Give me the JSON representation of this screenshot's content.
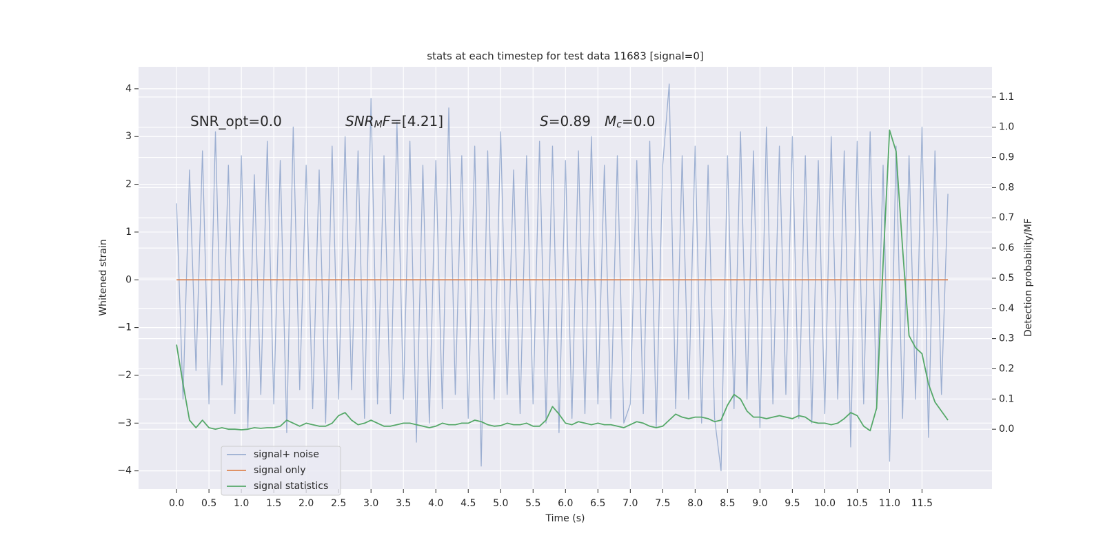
{
  "chart_data": {
    "type": "line",
    "title": "stats at each timestep for test data 11683 [signal=0]",
    "xlabel": "Time (s)",
    "ylabel": "Whitened strain",
    "y2label": "Detection probability/MF",
    "xlim": [
      -0.586,
      12.58
    ],
    "ylim": [
      -4.38,
      4.46
    ],
    "y2lim": [
      -0.198,
      1.2
    ],
    "xticks": [
      {
        "value": 0,
        "label": "0.0"
      },
      0.5,
      {
        "value": 1,
        "label": "1.0"
      },
      1.5,
      {
        "value": 2,
        "label": "2.0"
      },
      2.5,
      {
        "value": 3,
        "label": "3.0"
      },
      3.5,
      {
        "value": 4,
        "label": "4.0"
      },
      4.5,
      {
        "value": 5,
        "label": "5.0"
      },
      5.5,
      {
        "value": 6,
        "label": "6.0"
      },
      6.5,
      {
        "value": 7,
        "label": "7.0"
      },
      7.5,
      {
        "value": 8,
        "label": "8.0"
      },
      8.5,
      {
        "value": 9,
        "label": "9.0"
      },
      9.5,
      {
        "value": 10,
        "label": "10.0"
      },
      10.5,
      {
        "value": 11,
        "label": "11.0"
      },
      11.5
    ],
    "yticks": [
      {
        "value": -4,
        "label": "−4"
      },
      {
        "value": -3,
        "label": "−3"
      },
      {
        "value": -2,
        "label": "−2"
      },
      {
        "value": -1,
        "label": "−1"
      },
      0,
      1,
      2,
      3,
      4
    ],
    "y2ticks": [
      {
        "value": 0,
        "label": "0.0"
      },
      0.1,
      0.2,
      0.3,
      0.4,
      0.5,
      0.6,
      0.7,
      0.8,
      0.9,
      {
        "value": 1,
        "label": "1.0"
      },
      1.1
    ],
    "grid": true,
    "legend": "lower left",
    "annotations": [
      [
        {
          "text": "SNR_opt=0.0"
        }
      ],
      [
        {
          "text": "SNR",
          "italic": true
        },
        {
          "text": "M",
          "italic": true,
          "sub": true
        },
        {
          "text": "F",
          "italic": true
        },
        {
          "text": "=[4.21]"
        }
      ],
      [
        {
          "text": "S",
          "italic": true
        },
        {
          "text": "=0.89"
        }
      ],
      [
        {
          "text": "M",
          "italic": true
        },
        {
          "text": "c",
          "italic": true,
          "sub": true
        },
        {
          "text": "=0.0"
        }
      ]
    ],
    "x": [
      0.0,
      0.1,
      0.2,
      0.3,
      0.4,
      0.5,
      0.6,
      0.7,
      0.8,
      0.9,
      1.0,
      1.1,
      1.2,
      1.3,
      1.4,
      1.5,
      1.6,
      1.7,
      1.8,
      1.9,
      2.0,
      2.1,
      2.2,
      2.3,
      2.4,
      2.5,
      2.6,
      2.7,
      2.8,
      2.9,
      3.0,
      3.1,
      3.2,
      3.3,
      3.4,
      3.5,
      3.6,
      3.7,
      3.8,
      3.9,
      4.0,
      4.1,
      4.2,
      4.3,
      4.4,
      4.5,
      4.6,
      4.7,
      4.8,
      4.9,
      5.0,
      5.1,
      5.2,
      5.3,
      5.4,
      5.5,
      5.6,
      5.7,
      5.8,
      5.9,
      6.0,
      6.1,
      6.2,
      6.3,
      6.4,
      6.5,
      6.6,
      6.7,
      6.8,
      6.9,
      7.0,
      7.1,
      7.2,
      7.3,
      7.4,
      7.5,
      7.6,
      7.7,
      7.8,
      7.9,
      8.0,
      8.1,
      8.2,
      8.3,
      8.4,
      8.5,
      8.6,
      8.7,
      8.8,
      8.9,
      9.0,
      9.1,
      9.2,
      9.3,
      9.4,
      9.5,
      9.6,
      9.7,
      9.8,
      9.9,
      10.0,
      10.1,
      10.2,
      10.3,
      10.4,
      10.5,
      10.6,
      10.7,
      10.8,
      10.9,
      11.0,
      11.1,
      11.2,
      11.3,
      11.4,
      11.5,
      11.6,
      11.7,
      11.8,
      11.9
    ],
    "series": [
      {
        "name": "signal+ noise",
        "color": "#4c72b0",
        "alpha": 0.5,
        "values": [
          1.6,
          -2.5,
          2.3,
          -1.9,
          2.7,
          -2.6,
          3.1,
          -2.2,
          2.4,
          -2.8,
          2.6,
          -3.1,
          2.2,
          -2.4,
          2.9,
          -2.6,
          2.5,
          -3.2,
          3.2,
          -2.3,
          2.4,
          -2.7,
          2.3,
          -3.0,
          2.8,
          -2.5,
          3.0,
          -2.3,
          2.7,
          -2.9,
          3.8,
          -2.6,
          2.6,
          -2.8,
          3.3,
          -2.5,
          2.9,
          -3.4,
          2.4,
          -3.0,
          2.5,
          -2.7,
          3.6,
          -2.4,
          2.6,
          -2.9,
          2.8,
          -3.9,
          2.7,
          -2.5,
          3.1,
          -2.4,
          2.3,
          -2.8,
          2.6,
          -2.6,
          2.9,
          -3.0,
          2.8,
          -3.2,
          2.5,
          -2.9,
          2.7,
          -2.8,
          3.0,
          -2.6,
          2.4,
          -2.9,
          2.6,
          -3.0,
          -2.6,
          2.5,
          -2.8,
          2.9,
          -3.1,
          2.4,
          4.1,
          -2.7,
          2.6,
          -2.5,
          2.8,
          -3.0,
          2.4,
          -2.9,
          -4.0,
          2.6,
          -2.7,
          3.1,
          -2.5,
          2.7,
          -3.1,
          3.2,
          -2.6,
          2.8,
          -2.4,
          3.0,
          -2.9,
          2.6,
          -3.0,
          2.5,
          -2.8,
          3.0,
          -2.5,
          2.7,
          -3.5,
          2.9,
          -2.6,
          3.1,
          -2.7,
          2.4,
          -3.8,
          2.8,
          -2.9,
          2.6,
          -2.5,
          3.2,
          -3.3,
          2.7,
          -2.4,
          1.8
        ]
      },
      {
        "name": "signal only",
        "color": "#dd8452",
        "x": [
          0.0,
          11.9
        ],
        "values": [
          0,
          0
        ]
      },
      {
        "name": "signal statistics",
        "color": "#55a868",
        "axis": "y2",
        "values": [
          0.28,
          0.15,
          0.03,
          0.005,
          0.03,
          0.005,
          0.0,
          0.005,
          0.0,
          0.0,
          -0.002,
          0.0,
          0.005,
          0.003,
          0.005,
          0.005,
          0.01,
          0.03,
          0.02,
          0.01,
          0.02,
          0.015,
          0.01,
          0.01,
          0.02,
          0.045,
          0.055,
          0.03,
          0.015,
          0.02,
          0.03,
          0.02,
          0.01,
          0.01,
          0.015,
          0.02,
          0.02,
          0.015,
          0.01,
          0.005,
          0.01,
          0.02,
          0.015,
          0.015,
          0.02,
          0.02,
          0.03,
          0.025,
          0.015,
          0.01,
          0.012,
          0.02,
          0.015,
          0.015,
          0.02,
          0.01,
          0.01,
          0.03,
          0.075,
          0.05,
          0.02,
          0.015,
          0.025,
          0.02,
          0.015,
          0.02,
          0.015,
          0.015,
          0.01,
          0.005,
          0.015,
          0.025,
          0.02,
          0.01,
          0.005,
          0.01,
          0.03,
          0.05,
          0.04,
          0.035,
          0.04,
          0.04,
          0.035,
          0.025,
          0.03,
          0.08,
          0.115,
          0.1,
          0.06,
          0.04,
          0.04,
          0.035,
          0.04,
          0.045,
          0.04,
          0.035,
          0.045,
          0.04,
          0.025,
          0.02,
          0.02,
          0.015,
          0.02,
          0.035,
          0.055,
          0.045,
          0.01,
          -0.005,
          0.07,
          0.55,
          0.99,
          0.92,
          0.6,
          0.31,
          0.27,
          0.25,
          0.15,
          0.09,
          0.06,
          0.03
        ]
      }
    ]
  }
}
